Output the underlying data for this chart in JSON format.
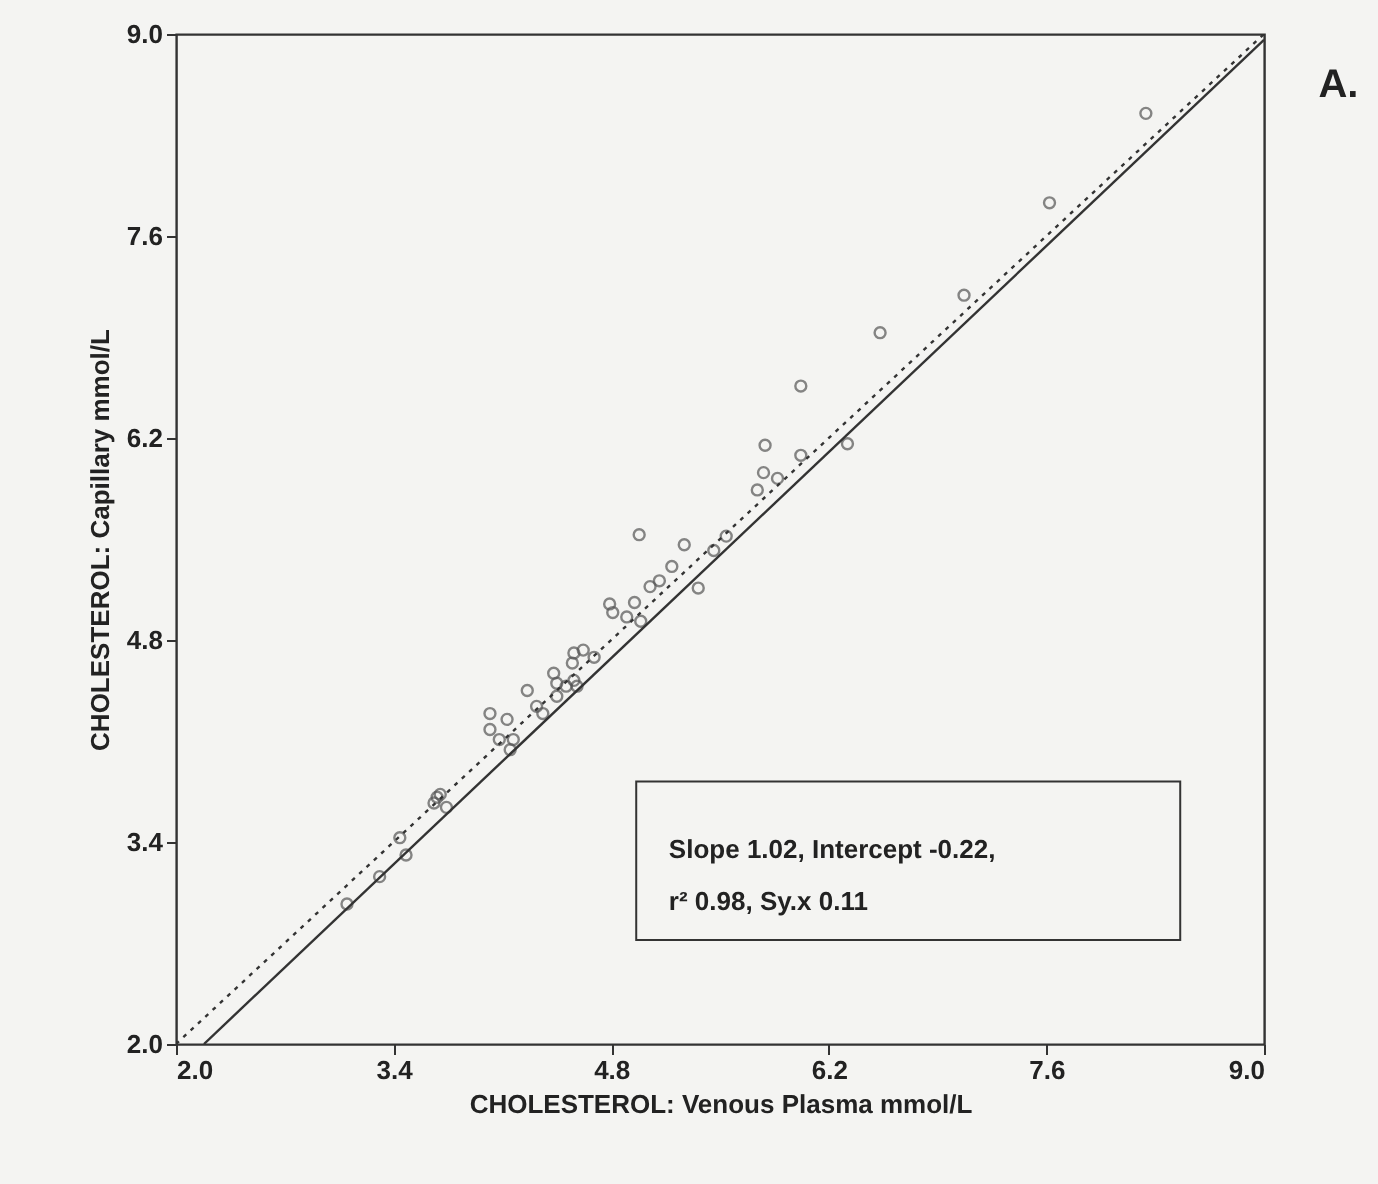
{
  "chart_data": {
    "type": "scatter",
    "xlabel": "CHOLESTEROL: Venous Plasma mmol/L",
    "ylabel": "CHOLESTEROL: Capillary mmol/L",
    "xlim": [
      2,
      9
    ],
    "ylim": [
      2,
      9
    ],
    "xticks": [
      {
        "value": 2,
        "label": "2.0"
      },
      3.4,
      4.8,
      6.2,
      7.6,
      {
        "value": 9,
        "label": "9.0"
      }
    ],
    "yticks": [
      {
        "value": 2,
        "label": "2.0"
      },
      3.4,
      4.8,
      6.2,
      7.6,
      {
        "value": 9,
        "label": "9.0"
      }
    ],
    "grid": false,
    "legend": false,
    "annotations": [
      "Slope 1.02, Intercept -0.22,",
      "r² 0.98, Sy.x 0.11",
      "A."
    ],
    "series": [
      {
        "color": "#555555",
        "marker": "circle",
        "x": [
          3.1,
          3.31,
          3.44,
          3.48,
          3.68,
          3.7,
          3.74,
          3.66,
          4.02,
          4.08,
          4.15,
          4.17,
          4.13,
          4.02,
          4.26,
          4.32,
          4.36,
          4.43,
          4.45,
          4.51,
          4.56,
          4.45,
          4.56,
          4.62,
          4.69,
          4.58,
          4.55,
          4.79,
          4.81,
          4.9,
          4.99,
          4.95,
          5.05,
          5.11,
          5.19,
          5.27,
          5.36,
          5.46,
          5.54,
          4.98,
          5.74,
          5.78,
          5.87,
          6.02,
          5.79,
          6.32,
          6.02,
          6.53,
          7.07,
          7.62,
          8.24
        ],
        "values": [
          2.97,
          3.16,
          3.43,
          3.31,
          3.71,
          3.73,
          3.64,
          3.67,
          4.18,
          4.11,
          4.04,
          4.11,
          4.25,
          4.29,
          4.45,
          4.34,
          4.29,
          4.57,
          4.5,
          4.48,
          4.52,
          4.41,
          4.71,
          4.73,
          4.68,
          4.48,
          4.64,
          5.05,
          4.99,
          4.96,
          4.93,
          5.06,
          5.17,
          5.21,
          5.31,
          5.46,
          5.16,
          5.42,
          5.52,
          5.53,
          5.84,
          5.96,
          5.92,
          6.08,
          6.15,
          6.16,
          6.56,
          6.93,
          7.19,
          7.83,
          8.45
        ]
      },
      {
        "type": "line",
        "color": "#333333",
        "line_style": "solid",
        "x": [
          2.18,
          9
        ],
        "values": [
          2,
          8.96
        ]
      },
      {
        "type": "line",
        "color": "#333333",
        "line_style": "dotted",
        "x": [
          2,
          9
        ],
        "values": [
          2,
          9
        ]
      }
    ]
  }
}
